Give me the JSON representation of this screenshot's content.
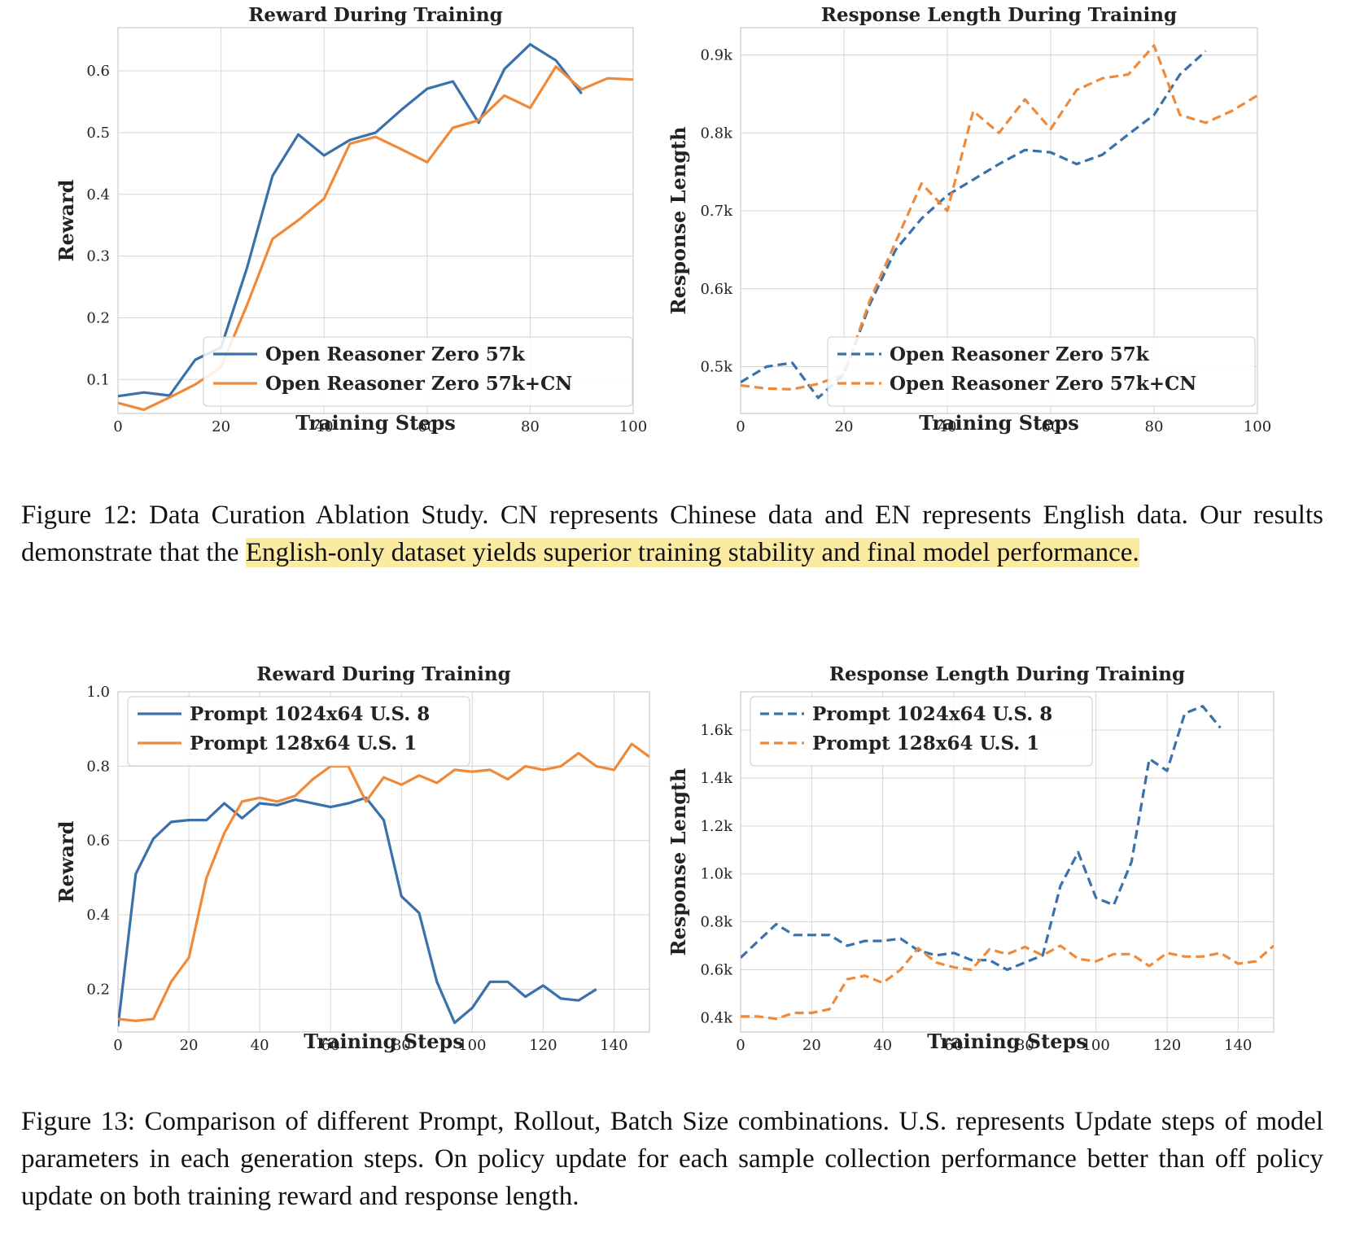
{
  "figure12": {
    "caption_prefix": "Figure 12: Data Curation Ablation Study. CN represents Chinese data and EN represents English data. Our results demonstrate that the ",
    "caption_highlight": "English-only dataset yields superior training stability and final model performance.",
    "caption_suffix": ""
  },
  "figure13": {
    "caption": "Figure 13: Comparison of different Prompt, Rollout, Batch Size combinations. U.S. represents Update steps of model parameters in each generation steps. On policy update for each sample collection performance better than off policy update on both training reward and response length."
  },
  "colors": {
    "blue": "#3a70ab",
    "orange": "#ee8a3a",
    "grid": "#d6d6d6",
    "frame": "#cccccc",
    "highlight": "#fbeba1"
  },
  "chart_data": [
    {
      "id": "f12_reward",
      "type": "line",
      "title": "Reward During Training",
      "xlabel": "Training Steps",
      "ylabel": "Reward",
      "xlim": [
        0,
        100
      ],
      "ylim": [
        0.045,
        0.67
      ],
      "xticks": [
        0,
        20,
        40,
        60,
        80,
        100
      ],
      "xtick_labels": [
        "0",
        "20",
        "40",
        "60",
        "80",
        "100"
      ],
      "yticks": [
        0.1,
        0.2,
        0.3,
        0.4,
        0.5,
        0.6
      ],
      "ytick_labels": [
        "0.1",
        "0.2",
        "0.3",
        "0.4",
        "0.5",
        "0.6"
      ],
      "grid": true,
      "legend_position": "lower-right",
      "series": [
        {
          "name": "Open Reasoner Zero 57k",
          "color": "#3a70ab",
          "dash": "solid",
          "x": [
            0,
            5,
            10,
            15,
            20,
            25,
            30,
            35,
            40,
            45,
            50,
            55,
            60,
            65,
            70,
            75,
            80,
            85,
            90
          ],
          "y": [
            0.073,
            0.079,
            0.074,
            0.132,
            0.152,
            0.28,
            0.43,
            0.497,
            0.463,
            0.488,
            0.5,
            0.537,
            0.571,
            0.583,
            0.516,
            0.603,
            0.643,
            0.617,
            0.563
          ]
        },
        {
          "name": "Open Reasoner Zero 57k+CN",
          "color": "#ee8a3a",
          "dash": "solid",
          "x": [
            0,
            5,
            10,
            15,
            20,
            25,
            30,
            35,
            40,
            45,
            50,
            55,
            60,
            65,
            70,
            75,
            80,
            85,
            90,
            95,
            100
          ],
          "y": [
            0.062,
            0.051,
            0.071,
            0.092,
            0.12,
            0.22,
            0.328,
            0.358,
            0.393,
            0.482,
            0.493,
            0.473,
            0.452,
            0.508,
            0.52,
            0.56,
            0.54,
            0.607,
            0.57,
            0.588,
            0.586
          ]
        }
      ]
    },
    {
      "id": "f12_length",
      "type": "line",
      "title": "Response Length During Training",
      "xlabel": "Training Steps",
      "ylabel": "Response Length",
      "xlim": [
        0,
        100
      ],
      "ylim": [
        0.44,
        0.935
      ],
      "xticks": [
        0,
        20,
        40,
        60,
        80,
        100
      ],
      "xtick_labels": [
        "0",
        "20",
        "40",
        "60",
        "80",
        "100"
      ],
      "yticks": [
        0.5,
        0.6,
        0.7,
        0.8,
        0.9
      ],
      "ytick_labels": [
        "0.5k",
        "0.6k",
        "0.7k",
        "0.8k",
        "0.9k"
      ],
      "grid": true,
      "legend_position": "lower-right",
      "series": [
        {
          "name": "Open Reasoner Zero 57k",
          "color": "#3a70ab",
          "dash": "dashed",
          "x": [
            0,
            5,
            10,
            15,
            20,
            25,
            30,
            35,
            40,
            45,
            50,
            55,
            60,
            65,
            70,
            75,
            80,
            85,
            90
          ],
          "y": [
            0.48,
            0.5,
            0.505,
            0.46,
            0.49,
            0.58,
            0.65,
            0.69,
            0.72,
            0.74,
            0.76,
            0.778,
            0.775,
            0.76,
            0.772,
            0.798,
            0.823,
            0.875,
            0.905
          ]
        },
        {
          "name": "Open Reasoner Zero 57k+CN",
          "color": "#ee8a3a",
          "dash": "dashed",
          "x": [
            0,
            5,
            10,
            15,
            20,
            25,
            30,
            35,
            40,
            45,
            50,
            55,
            60,
            65,
            70,
            75,
            80,
            85,
            90,
            95,
            100
          ],
          "y": [
            0.476,
            0.472,
            0.471,
            0.478,
            0.49,
            0.585,
            0.66,
            0.735,
            0.7,
            0.828,
            0.8,
            0.843,
            0.805,
            0.855,
            0.87,
            0.875,
            0.912,
            0.823,
            0.813,
            0.828,
            0.848
          ]
        }
      ]
    },
    {
      "id": "f13_reward",
      "type": "line",
      "title": "Reward During Training",
      "xlabel": "Training Steps",
      "ylabel": "Reward",
      "xlim": [
        0,
        150
      ],
      "ylim": [
        0.085,
        1.0
      ],
      "xticks": [
        0,
        20,
        40,
        60,
        80,
        100,
        120,
        140
      ],
      "xtick_labels": [
        "0",
        "20",
        "40",
        "60",
        "80",
        "100",
        "120",
        "140"
      ],
      "yticks": [
        0.2,
        0.4,
        0.6,
        0.8,
        1.0
      ],
      "ytick_labels": [
        "0.2",
        "0.4",
        "0.6",
        "0.8",
        "1.0"
      ],
      "grid": true,
      "legend_position": "upper-left",
      "series": [
        {
          "name": "Prompt 1024x64 U.S. 8",
          "color": "#3a70ab",
          "dash": "solid",
          "x": [
            0,
            5,
            10,
            15,
            20,
            25,
            30,
            35,
            40,
            45,
            50,
            55,
            60,
            65,
            70,
            75,
            80,
            85,
            90,
            95,
            100,
            105,
            110,
            115,
            120,
            125,
            130,
            135
          ],
          "y": [
            0.1,
            0.51,
            0.605,
            0.65,
            0.655,
            0.655,
            0.7,
            0.66,
            0.7,
            0.695,
            0.71,
            0.7,
            0.69,
            0.7,
            0.715,
            0.655,
            0.45,
            0.405,
            0.22,
            0.11,
            0.15,
            0.22,
            0.22,
            0.18,
            0.21,
            0.175,
            0.17,
            0.2
          ]
        },
        {
          "name": "Prompt 128x64 U.S. 1",
          "color": "#ee8a3a",
          "dash": "solid",
          "x": [
            0,
            5,
            10,
            15,
            20,
            25,
            30,
            35,
            40,
            45,
            50,
            55,
            60,
            65,
            70,
            75,
            80,
            85,
            90,
            95,
            100,
            105,
            110,
            115,
            120,
            125,
            130,
            135,
            140,
            145,
            150
          ],
          "y": [
            0.12,
            0.115,
            0.12,
            0.22,
            0.285,
            0.5,
            0.62,
            0.705,
            0.715,
            0.705,
            0.72,
            0.765,
            0.8,
            0.8,
            0.705,
            0.77,
            0.75,
            0.775,
            0.755,
            0.79,
            0.785,
            0.79,
            0.765,
            0.8,
            0.79,
            0.8,
            0.835,
            0.8,
            0.79,
            0.86,
            0.825
          ]
        }
      ]
    },
    {
      "id": "f13_length",
      "type": "line",
      "title": "Response Length During Training",
      "xlabel": "Training Steps",
      "ylabel": "Response Length",
      "xlim": [
        0,
        150
      ],
      "ylim": [
        0.34,
        1.76
      ],
      "xticks": [
        0,
        20,
        40,
        60,
        80,
        100,
        120,
        140
      ],
      "xtick_labels": [
        "0",
        "20",
        "40",
        "60",
        "80",
        "100",
        "120",
        "140"
      ],
      "yticks": [
        0.4,
        0.6,
        0.8,
        1.0,
        1.2,
        1.4,
        1.6
      ],
      "ytick_labels": [
        "0.4k",
        "0.6k",
        "0.8k",
        "1.0k",
        "1.2k",
        "1.4k",
        "1.6k"
      ],
      "grid": true,
      "legend_position": "upper-left",
      "series": [
        {
          "name": "Prompt 1024x64 U.S. 8",
          "color": "#3a70ab",
          "dash": "dashed",
          "x": [
            0,
            5,
            10,
            15,
            20,
            25,
            30,
            35,
            40,
            45,
            50,
            55,
            60,
            65,
            70,
            75,
            80,
            85,
            90,
            95,
            100,
            105,
            110,
            115,
            120,
            125,
            130,
            135
          ],
          "y": [
            0.65,
            0.72,
            0.79,
            0.745,
            0.745,
            0.745,
            0.7,
            0.72,
            0.72,
            0.73,
            0.68,
            0.66,
            0.67,
            0.64,
            0.64,
            0.6,
            0.63,
            0.66,
            0.95,
            1.09,
            0.9,
            0.87,
            1.05,
            1.48,
            1.43,
            1.67,
            1.7,
            1.61
          ]
        },
        {
          "name": "Prompt 128x64 U.S. 1",
          "color": "#ee8a3a",
          "dash": "dashed",
          "x": [
            0,
            5,
            10,
            15,
            20,
            25,
            30,
            35,
            40,
            45,
            50,
            55,
            60,
            65,
            70,
            75,
            80,
            85,
            90,
            95,
            100,
            105,
            110,
            115,
            120,
            125,
            130,
            135,
            140,
            145,
            150
          ],
          "y": [
            0.405,
            0.405,
            0.395,
            0.42,
            0.42,
            0.435,
            0.56,
            0.575,
            0.545,
            0.6,
            0.69,
            0.63,
            0.61,
            0.6,
            0.685,
            0.665,
            0.695,
            0.66,
            0.7,
            0.645,
            0.635,
            0.665,
            0.665,
            0.615,
            0.67,
            0.655,
            0.655,
            0.67,
            0.625,
            0.635,
            0.7
          ]
        }
      ]
    }
  ]
}
